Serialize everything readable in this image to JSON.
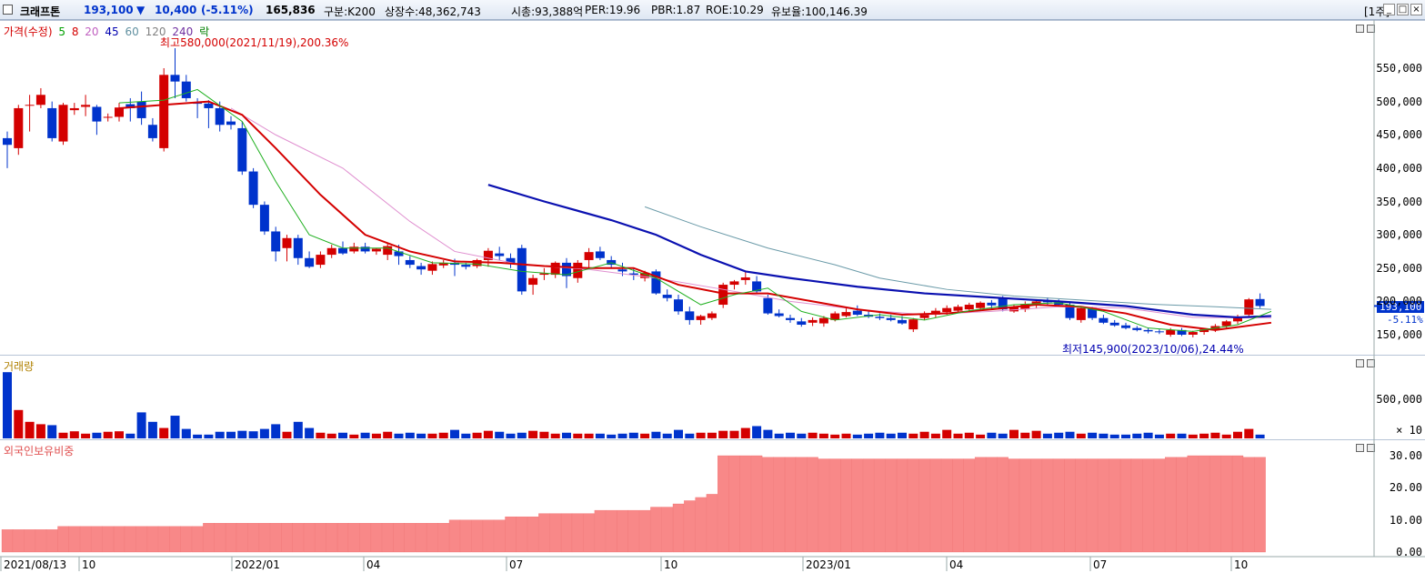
{
  "header": {
    "stock_name": "크래프톤",
    "price": "193,100",
    "change_arrow": "▼",
    "change": "10,400",
    "change_pct": "(-5.11%)",
    "volume": "165,836",
    "category": "구분:K200",
    "listed_shares": "상장수:48,362,743",
    "market_cap": "시총:93,388억",
    "per": "PER:19.96",
    "pbr": "PBR:1.87",
    "roe": "ROE:10.29",
    "float": "유보율:100,146.39",
    "period": "[1주]",
    "colors": {
      "down": "#0033cc",
      "up": "#d40000"
    }
  },
  "price_panel": {
    "legend": {
      "price": "가격(수정)",
      "ma5": "5",
      "ma8": "8",
      "ma20": "20",
      "ma45": "45",
      "ma60": "60",
      "ma120": "120",
      "ma240": "240",
      "fall": "락"
    },
    "high_note": "최고580,000(2021/11/19),200.36%",
    "low_note": "최저145,900(2023/10/06),24.44%",
    "y_ticks": [
      "550,000",
      "500,000",
      "450,000",
      "400,000",
      "350,000",
      "300,000",
      "250,000",
      "200,000",
      "150,000"
    ],
    "current_price_tag": "193,100",
    "current_pct_tag": "-5.11%"
  },
  "volume_panel": {
    "legend": "거래량",
    "y_ticks": [
      "500,000"
    ],
    "unit": "× 10"
  },
  "foreign_panel": {
    "legend": "외국인보유비중",
    "y_ticks": [
      "30.00",
      "20.00",
      "10.00",
      "0.00"
    ]
  },
  "x_axis": {
    "labels": [
      "2021/08/13",
      "10",
      "2022/01",
      "04",
      "07",
      "10",
      "2023/01",
      "04",
      "07",
      "10"
    ]
  },
  "chart_data": {
    "type": "candlestick",
    "y_unit": "KRW",
    "ylim": [
      140000,
      590000
    ],
    "candles": [
      [
        445000,
        455000,
        400000,
        435000
      ],
      [
        430000,
        495000,
        420000,
        490000
      ],
      [
        495000,
        510000,
        455000,
        495000
      ],
      [
        495000,
        520000,
        490000,
        510000
      ],
      [
        490000,
        500000,
        440000,
        445000
      ],
      [
        440000,
        498000,
        435000,
        495000
      ],
      [
        487000,
        498000,
        480000,
        490000
      ],
      [
        492000,
        510000,
        478000,
        495000
      ],
      [
        492000,
        495000,
        450000,
        470000
      ],
      [
        476000,
        482000,
        470000,
        477000
      ],
      [
        477000,
        498000,
        470000,
        491000
      ],
      [
        496000,
        505000,
        470000,
        490000
      ],
      [
        500000,
        515000,
        465000,
        475000
      ],
      [
        465000,
        475000,
        440000,
        445000
      ],
      [
        430000,
        550000,
        425000,
        540000
      ],
      [
        540000,
        580000,
        505000,
        530000
      ],
      [
        530000,
        540000,
        500000,
        505000
      ],
      [
        498000,
        505000,
        475000,
        497000
      ],
      [
        497000,
        502000,
        460000,
        490000
      ],
      [
        490000,
        500000,
        455000,
        465000
      ],
      [
        470000,
        478000,
        458000,
        465000
      ],
      [
        460000,
        470000,
        390000,
        395000
      ],
      [
        395000,
        400000,
        340000,
        345000
      ],
      [
        345000,
        350000,
        300000,
        305000
      ],
      [
        305000,
        312000,
        260000,
        275000
      ],
      [
        280000,
        300000,
        260000,
        295000
      ],
      [
        295000,
        300000,
        255000,
        265000
      ],
      [
        265000,
        275000,
        250000,
        252000
      ],
      [
        255000,
        275000,
        250000,
        270000
      ],
      [
        270000,
        285000,
        265000,
        280000
      ],
      [
        280000,
        290000,
        270000,
        272000
      ],
      [
        275000,
        288000,
        272000,
        282000
      ],
      [
        282000,
        288000,
        272000,
        275000
      ],
      [
        275000,
        280000,
        270000,
        279000
      ],
      [
        270000,
        288000,
        262000,
        283000
      ],
      [
        275000,
        285000,
        255000,
        268000
      ],
      [
        262000,
        268000,
        250000,
        255000
      ],
      [
        253000,
        258000,
        240000,
        248000
      ],
      [
        246000,
        260000,
        240000,
        256000
      ],
      [
        254000,
        262000,
        250000,
        258000
      ],
      [
        258000,
        264000,
        238000,
        255000
      ],
      [
        255000,
        258000,
        248000,
        252000
      ],
      [
        253000,
        264000,
        250000,
        262000
      ],
      [
        262000,
        280000,
        252000,
        276000
      ],
      [
        272000,
        282000,
        262000,
        268000
      ],
      [
        265000,
        272000,
        250000,
        256000
      ],
      [
        280000,
        285000,
        210000,
        215000
      ],
      [
        225000,
        240000,
        210000,
        235000
      ],
      [
        240000,
        250000,
        232000,
        242000
      ],
      [
        240000,
        260000,
        235000,
        258000
      ],
      [
        258000,
        265000,
        220000,
        238000
      ],
      [
        235000,
        262000,
        228000,
        258000
      ],
      [
        262000,
        280000,
        250000,
        274000
      ],
      [
        275000,
        282000,
        262000,
        265000
      ],
      [
        262000,
        268000,
        250000,
        255000
      ],
      [
        248000,
        258000,
        238000,
        245000
      ],
      [
        242000,
        250000,
        232000,
        240000
      ],
      [
        235000,
        246000,
        230000,
        243000
      ],
      [
        245000,
        248000,
        210000,
        212000
      ],
      [
        210000,
        218000,
        200000,
        205000
      ],
      [
        203000,
        210000,
        180000,
        185000
      ],
      [
        185000,
        192000,
        165000,
        172000
      ],
      [
        172000,
        180000,
        165000,
        178000
      ],
      [
        175000,
        185000,
        172000,
        182000
      ],
      [
        195000,
        228000,
        190000,
        225000
      ],
      [
        225000,
        232000,
        218000,
        230000
      ],
      [
        232000,
        246000,
        225000,
        236000
      ],
      [
        230000,
        238000,
        212000,
        215000
      ],
      [
        205000,
        210000,
        180000,
        182000
      ],
      [
        182000,
        188000,
        176000,
        178000
      ],
      [
        175000,
        180000,
        168000,
        172000
      ],
      [
        170000,
        175000,
        162000,
        165000
      ],
      [
        168000,
        176000,
        163000,
        172000
      ],
      [
        167000,
        178000,
        162000,
        175000
      ],
      [
        172000,
        185000,
        170000,
        182000
      ],
      [
        178000,
        190000,
        176000,
        184000
      ],
      [
        186000,
        194000,
        178000,
        180000
      ],
      [
        180000,
        186000,
        175000,
        177000
      ],
      [
        177000,
        182000,
        172000,
        175000
      ],
      [
        175000,
        180000,
        170000,
        172000
      ],
      [
        172000,
        178000,
        165000,
        167000
      ],
      [
        158000,
        175000,
        154000,
        173000
      ],
      [
        175000,
        185000,
        172000,
        182000
      ],
      [
        180000,
        190000,
        176000,
        186000
      ],
      [
        184000,
        194000,
        180000,
        190000
      ],
      [
        186000,
        195000,
        182000,
        192000
      ],
      [
        188000,
        198000,
        184000,
        195000
      ],
      [
        190000,
        200000,
        186000,
        198000
      ],
      [
        198000,
        202000,
        188000,
        194000
      ],
      [
        205000,
        208000,
        185000,
        188000
      ],
      [
        185000,
        195000,
        183000,
        192000
      ],
      [
        188000,
        200000,
        184000,
        196000
      ],
      [
        196000,
        203000,
        190000,
        200000
      ],
      [
        200000,
        206000,
        193000,
        199000
      ],
      [
        199000,
        203000,
        192000,
        195000
      ],
      [
        195000,
        198000,
        172000,
        175000
      ],
      [
        172000,
        192000,
        168000,
        190000
      ],
      [
        190000,
        192000,
        172000,
        175000
      ],
      [
        175000,
        180000,
        166000,
        168000
      ],
      [
        168000,
        172000,
        162000,
        164000
      ],
      [
        164000,
        168000,
        158000,
        160000
      ],
      [
        160000,
        163000,
        155000,
        157000
      ],
      [
        157000,
        160000,
        152000,
        155000
      ],
      [
        155000,
        158000,
        151000,
        154000
      ],
      [
        150000,
        160000,
        147000,
        157000
      ],
      [
        157000,
        160000,
        148000,
        150000
      ],
      [
        150000,
        156000,
        146000,
        154000
      ],
      [
        154000,
        160000,
        150000,
        158000
      ],
      [
        158000,
        166000,
        154000,
        163000
      ],
      [
        163000,
        172000,
        160000,
        170000
      ],
      [
        170000,
        180000,
        166000,
        177000
      ],
      [
        180000,
        205000,
        178000,
        203000
      ],
      [
        203500,
        212000,
        190000,
        193100
      ]
    ],
    "ma5": [
      [
        10,
        498000
      ],
      [
        14,
        502000
      ],
      [
        17,
        518000
      ],
      [
        21,
        470000
      ],
      [
        24,
        380000
      ],
      [
        27,
        300000
      ],
      [
        30,
        280000
      ],
      [
        34,
        280000
      ],
      [
        38,
        258000
      ],
      [
        42,
        256000
      ],
      [
        46,
        245000
      ],
      [
        50,
        240000
      ],
      [
        54,
        258000
      ],
      [
        58,
        235000
      ],
      [
        62,
        195000
      ],
      [
        65,
        210000
      ],
      [
        68,
        220000
      ],
      [
        71,
        185000
      ],
      [
        74,
        172000
      ],
      [
        78,
        180000
      ],
      [
        82,
        172000
      ],
      [
        86,
        186000
      ],
      [
        90,
        195000
      ],
      [
        94,
        198000
      ],
      [
        98,
        185000
      ],
      [
        102,
        160000
      ],
      [
        106,
        155000
      ],
      [
        110,
        165000
      ],
      [
        113,
        185000
      ]
    ],
    "ma20": [
      [
        10,
        490000
      ],
      [
        14,
        495000
      ],
      [
        18,
        500000
      ],
      [
        21,
        480000
      ],
      [
        24,
        430000
      ],
      [
        28,
        360000
      ],
      [
        32,
        300000
      ],
      [
        36,
        275000
      ],
      [
        40,
        260000
      ],
      [
        44,
        258000
      ],
      [
        48,
        253000
      ],
      [
        52,
        250000
      ],
      [
        56,
        250000
      ],
      [
        60,
        225000
      ],
      [
        64,
        212000
      ],
      [
        68,
        212000
      ],
      [
        72,
        200000
      ],
      [
        76,
        188000
      ],
      [
        80,
        180000
      ],
      [
        84,
        182000
      ],
      [
        88,
        188000
      ],
      [
        92,
        195000
      ],
      [
        96,
        192000
      ],
      [
        100,
        182000
      ],
      [
        104,
        165000
      ],
      [
        108,
        157000
      ],
      [
        113,
        168000
      ]
    ],
    "ma45": [
      [
        43,
        375000
      ],
      [
        48,
        350000
      ],
      [
        54,
        322000
      ],
      [
        58,
        300000
      ],
      [
        62,
        270000
      ],
      [
        66,
        245000
      ],
      [
        70,
        235000
      ],
      [
        76,
        222000
      ],
      [
        82,
        212000
      ],
      [
        88,
        206000
      ],
      [
        94,
        200000
      ],
      [
        100,
        193000
      ],
      [
        106,
        180000
      ],
      [
        110,
        176000
      ],
      [
        113,
        178000
      ]
    ],
    "ma60": [
      [
        57,
        342000
      ],
      [
        62,
        312000
      ],
      [
        68,
        280000
      ],
      [
        74,
        255000
      ],
      [
        78,
        235000
      ],
      [
        84,
        218000
      ],
      [
        90,
        208000
      ],
      [
        96,
        202000
      ],
      [
        102,
        196000
      ],
      [
        108,
        192000
      ],
      [
        113,
        188000
      ]
    ],
    "ma120": [
      [
        20,
        490000
      ],
      [
        24,
        450000
      ],
      [
        30,
        400000
      ],
      [
        36,
        320000
      ],
      [
        40,
        275000
      ],
      [
        46,
        255000
      ],
      [
        52,
        248000
      ],
      [
        58,
        235000
      ],
      [
        64,
        218000
      ],
      [
        70,
        200000
      ],
      [
        76,
        188000
      ],
      [
        82,
        180000
      ],
      [
        88,
        185000
      ],
      [
        94,
        192000
      ],
      [
        100,
        190000
      ],
      [
        106,
        176000
      ],
      [
        113,
        175000
      ]
    ],
    "volume": [
      140,
      60,
      35,
      30,
      28,
      12,
      15,
      10,
      12,
      14,
      15,
      10,
      55,
      35,
      22,
      48,
      20,
      8,
      8,
      14,
      14,
      16,
      15,
      20,
      30,
      14,
      35,
      22,
      12,
      10,
      12,
      8,
      12,
      10,
      14,
      10,
      12,
      10,
      10,
      12,
      18,
      10,
      12,
      16,
      14,
      10,
      12,
      16,
      14,
      10,
      12,
      10,
      10,
      10,
      8,
      10,
      12,
      10,
      14,
      10,
      18,
      10,
      12,
      12,
      16,
      16,
      22,
      26,
      18,
      10,
      12,
      10,
      12,
      10,
      8,
      10,
      8,
      10,
      12,
      10,
      12,
      10,
      14,
      10,
      18,
      10,
      12,
      8,
      12,
      10,
      18,
      12,
      16,
      10,
      12,
      14,
      10,
      12,
      10,
      8,
      8,
      10,
      12,
      8,
      10,
      10,
      8,
      10,
      12,
      8,
      14,
      20,
      8
    ],
    "foreign": [
      7,
      7,
      7,
      7,
      7,
      8,
      8,
      8,
      8,
      8,
      8,
      8,
      8,
      8,
      8,
      8,
      8,
      8,
      9,
      9,
      9,
      9,
      9,
      9,
      9,
      9,
      9,
      9,
      9,
      9,
      9,
      9,
      9,
      9,
      9,
      9,
      9,
      9,
      9,
      9,
      10,
      10,
      10,
      10,
      10,
      11,
      11,
      11,
      12,
      12,
      12,
      12,
      12,
      13,
      13,
      13,
      13,
      13,
      14,
      14,
      15,
      16,
      17,
      18,
      30,
      30,
      30,
      30,
      29.5,
      29.5,
      29.5,
      29.5,
      29.5,
      29,
      29,
      29,
      29,
      29,
      29,
      29,
      29,
      29,
      29,
      29,
      29,
      29,
      29,
      29.5,
      29.5,
      29.5,
      29,
      29,
      29,
      29,
      29,
      29,
      29,
      29,
      29,
      29,
      29,
      29,
      29,
      29,
      29.5,
      29.5,
      30,
      30,
      30,
      30,
      30,
      29.5,
      29.5
    ],
    "x_ticks": [
      "2021/08/13",
      "10",
      "2022/01",
      "04",
      "07",
      "10",
      "2023/01",
      "04",
      "07",
      "10"
    ]
  }
}
